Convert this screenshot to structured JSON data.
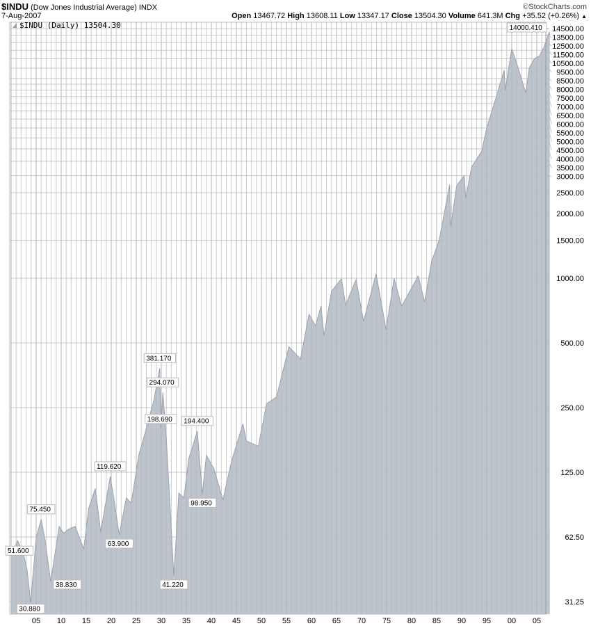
{
  "header": {
    "symbol": "$INDU",
    "name": "(Dow Jones Industrial Average)",
    "exchange": "INDX",
    "brand": "©StockCharts.com",
    "date": "7-Aug-2007",
    "open_label": "Open",
    "open": "13467.72",
    "high_label": "High",
    "high": "13608.11",
    "low_label": "Low",
    "low": "13347.17",
    "close_label": "Close",
    "close": "13504.30",
    "volume_label": "Volume",
    "volume": "641.3M",
    "chg_label": "Chg",
    "chg": "+35.52 (+0.26%)",
    "chg_icon": "up-triangle-icon"
  },
  "chart_data": {
    "type": "area",
    "legend": "$INDU (Daily) 13504.30",
    "legend_placement": "top-left",
    "yscale": "log",
    "ylim": [
      27.3,
      15450
    ],
    "xlim": [
      1900,
      2007.7
    ],
    "grid": true,
    "fill_color": "#b7bec7",
    "line_color": "#9aa1aa",
    "yticks": [
      "14500.00",
      "13500.00",
      "12500.00",
      "11500.00",
      "10500.00",
      "9500.00",
      "8500.00",
      "8000.00",
      "7500.00",
      "7000.00",
      "6500.00",
      "6000.00",
      "5500.00",
      "5000.00",
      "4500.00",
      "4000.00",
      "3500.00",
      "3000.00",
      "2500.00",
      "2000.00",
      "1500.00",
      "1000.00",
      "500.00",
      "250.00",
      "125.00",
      "62.50",
      "31.25"
    ],
    "xticks": [
      "05",
      "10",
      "15",
      "20",
      "25",
      "30",
      "35",
      "40",
      "45",
      "50",
      "55",
      "60",
      "65",
      "70",
      "75",
      "80",
      "85",
      "90",
      "95",
      "00",
      "05"
    ],
    "series": {
      "x": [
        1900,
        1901.3,
        1902.5,
        1903.2,
        1903.9,
        1905,
        1906,
        1906.8,
        1907.9,
        1909.6,
        1910.5,
        1911.5,
        1912.8,
        1914.5,
        1915.5,
        1916.8,
        1917.9,
        1919.8,
        1920.5,
        1921.6,
        1923,
        1924,
        1925.5,
        1927,
        1928.5,
        1929.7,
        1929.9,
        1930.3,
        1931,
        1932.5,
        1933.5,
        1934.5,
        1935.5,
        1937.2,
        1938.2,
        1939,
        1940.5,
        1942.3,
        1944,
        1946.3,
        1947,
        1949.4,
        1951,
        1953,
        1955.5,
        1957.8,
        1959.5,
        1960.8,
        1961.9,
        1962.5,
        1964,
        1966,
        1966.8,
        1968.9,
        1970.4,
        1972.9,
        1974.9,
        1976.5,
        1978,
        1980,
        1981.3,
        1982.6,
        1984,
        1985.5,
        1987.6,
        1987.8,
        1989,
        1990.5,
        1990.8,
        1992,
        1994,
        1995,
        1996.5,
        1998.5,
        1998.7,
        2000,
        2001,
        2002.8,
        2003.5,
        2004.5,
        2005.5,
        2006.5,
        2007.5,
        2007.6
      ],
      "values": [
        51.6,
        60,
        52,
        44,
        30.88,
        62,
        75.45,
        60,
        38.83,
        70,
        65,
        68,
        70,
        55,
        85,
        105,
        66,
        119.62,
        95,
        63.9,
        95,
        90,
        150,
        200,
        270,
        381.17,
        198.69,
        294.07,
        180,
        41.22,
        100,
        95,
        145,
        194.4,
        98.95,
        150,
        130,
        93,
        140,
        210,
        175,
        165,
        260,
        280,
        480,
        420,
        680,
        600,
        740,
        540,
        870,
        995,
        750,
        985,
        630,
        1050,
        577,
        1000,
        740,
        900,
        1024,
        777,
        1200,
        1500,
        2722,
        1739,
        2700,
        2999,
        2365,
        3300,
        3900,
        5000,
        6500,
        9300,
        7500,
        11700,
        10000,
        7286,
        9500,
        10500,
        10800,
        12000,
        14000,
        13504.3
      ]
    },
    "annotations": [
      {
        "text": "51.600",
        "x": 1900,
        "value": 51.6
      },
      {
        "text": "30.880",
        "x": 1903.9,
        "value": 30.88
      },
      {
        "text": "75.450",
        "x": 1906,
        "value": 75.45
      },
      {
        "text": "38.830",
        "x": 1907.9,
        "value": 38.83
      },
      {
        "text": "119.620",
        "x": 1919.8,
        "value": 119.62
      },
      {
        "text": "63.900",
        "x": 1921.6,
        "value": 63.9
      },
      {
        "text": "381.170",
        "x": 1929.7,
        "value": 381.17
      },
      {
        "text": "294.070",
        "x": 1930.3,
        "value": 294.07
      },
      {
        "text": "198.690",
        "x": 1929.9,
        "value": 198.69
      },
      {
        "text": "41.220",
        "x": 1932.5,
        "value": 41.22
      },
      {
        "text": "194.400",
        "x": 1937.2,
        "value": 194.4
      },
      {
        "text": "98.950",
        "x": 1938.2,
        "value": 98.95
      },
      {
        "text": "14000.410",
        "x": 2007.5,
        "value": 14000.41
      }
    ]
  }
}
